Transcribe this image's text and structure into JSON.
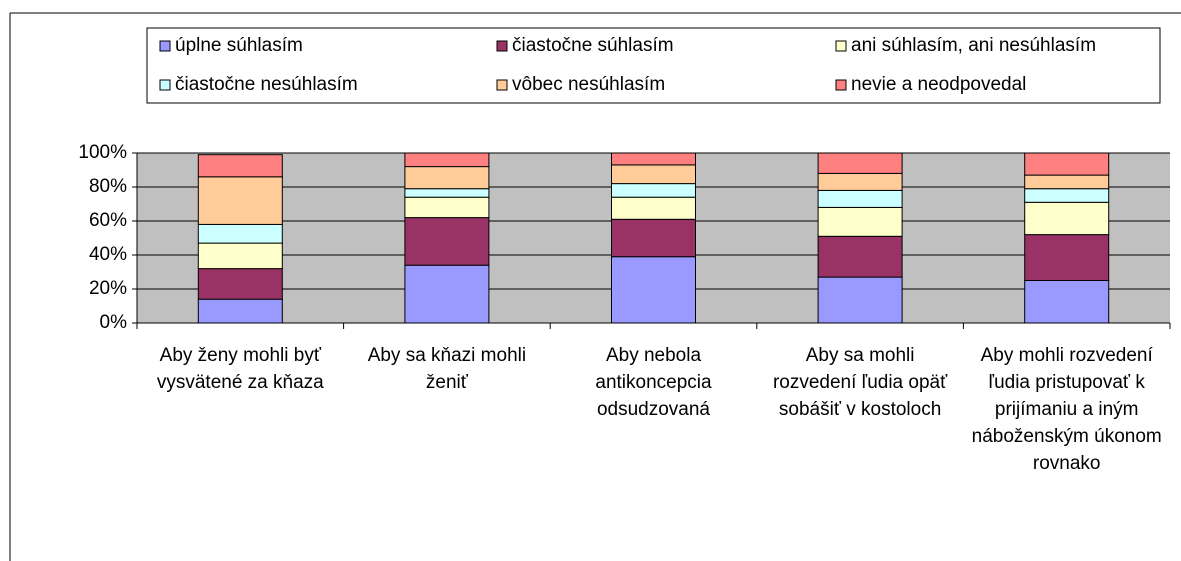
{
  "chart_data": {
    "type": "stacked_bar_100",
    "categories": [
      "Aby ženy mohli byť vysvätené za kňaza",
      "Aby sa kňazi mohli ženiť",
      "Aby nebola antikoncepcia odsudzovaná",
      "Aby sa mohli rozvedení ľudia opäť sobášiť v kostoloch",
      "Aby mohli rozvedení ľudia pristupovať k prijímaniu a iným náboženským úkonom rovnako"
    ],
    "series": [
      {
        "name": "úplne súhlasím",
        "color": "#9999ff",
        "values": [
          14,
          34,
          39,
          27,
          25
        ]
      },
      {
        "name": "čiastočne súhlasím",
        "color": "#993366",
        "values": [
          18,
          28,
          22,
          24,
          27
        ]
      },
      {
        "name": "ani súhlasím, ani nesúhlasím",
        "color": "#ffffcc",
        "values": [
          15,
          12,
          13,
          17,
          19
        ]
      },
      {
        "name": "čiastočne nesúhlasím",
        "color": "#ccffff",
        "values": [
          11,
          5,
          8,
          10,
          8
        ]
      },
      {
        "name": "vôbec nesúhlasím",
        "color": "#ffcc99",
        "values": [
          28,
          13,
          11,
          10,
          8
        ]
      },
      {
        "name": "nevie a neodpovedal",
        "color": "#ff8080",
        "values": [
          13,
          8,
          7,
          12,
          13
        ]
      }
    ],
    "ylim": [
      0,
      100
    ],
    "yticks": [
      {
        "value": 0,
        "label": "0%"
      },
      {
        "value": 20,
        "label": "20%"
      },
      {
        "value": 40,
        "label": "40%"
      },
      {
        "value": 60,
        "label": "60%"
      },
      {
        "value": 80,
        "label": "80%"
      },
      {
        "value": 100,
        "label": "100%"
      }
    ],
    "grid": true,
    "legend": "top",
    "plot_background": "#c0c0c0"
  }
}
